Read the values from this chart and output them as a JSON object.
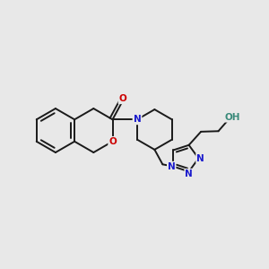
{
  "background_color": "#e8e8e8",
  "bond_color": "#1a1a1a",
  "bond_width": 1.4,
  "atom_colors": {
    "O": "#cc0000",
    "N": "#1a1acc",
    "OH": "#3a8a7a"
  },
  "figsize": [
    3.0,
    3.0
  ],
  "dpi": 100
}
